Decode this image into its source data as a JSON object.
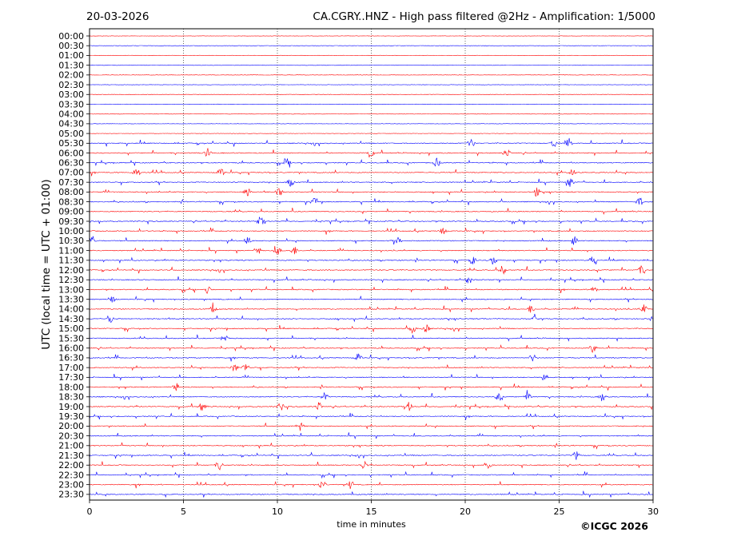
{
  "chart_data": {
    "type": "line",
    "date": "20-03-2026",
    "title": "CA.CGRY..HNZ - High pass filtered @2Hz - Amplification: 1/5000",
    "xlabel": "time in minutes",
    "ylabel": "UTC (local time = UTC + 01:00)",
    "copyright": "©ICGC 2026",
    "xlim": [
      0,
      30
    ],
    "x_ticks": [
      0,
      5,
      10,
      15,
      20,
      25,
      30
    ],
    "x_tick_labels": [
      "0",
      "5",
      "10",
      "15",
      "20",
      "25",
      "30"
    ],
    "vertical_gridlines_minutes": [
      5,
      10,
      15,
      20,
      25
    ],
    "grid_style": "dotted",
    "trace_colors": [
      "#ff0000",
      "#0000ff"
    ],
    "rows": [
      "00:00",
      "00:30",
      "01:00",
      "01:30",
      "02:00",
      "02:30",
      "03:00",
      "03:30",
      "04:00",
      "04:30",
      "05:00",
      "05:30",
      "06:00",
      "06:30",
      "07:00",
      "07:30",
      "08:00",
      "08:30",
      "09:00",
      "09:30",
      "10:00",
      "10:30",
      "11:00",
      "11:30",
      "12:00",
      "12:30",
      "13:00",
      "13:30",
      "14:00",
      "14:30",
      "15:00",
      "15:30",
      "16:00",
      "16:30",
      "17:00",
      "17:30",
      "18:00",
      "18:30",
      "19:00",
      "19:30",
      "20:00",
      "20:30",
      "21:00",
      "21:30",
      "22:00",
      "22:30",
      "23:00",
      "23:30"
    ],
    "events": [
      {
        "row": "05:30",
        "minutes": [
          20.3,
          24.7,
          25.5
        ]
      },
      {
        "row": "06:00",
        "minutes": [
          6.3,
          15.0,
          22.2
        ]
      },
      {
        "row": "06:30",
        "minutes": [
          10.5,
          18.5
        ]
      },
      {
        "row": "07:00",
        "minutes": [
          2.5,
          7.0,
          25.7
        ]
      },
      {
        "row": "07:30",
        "minutes": [
          10.7,
          25.6
        ]
      },
      {
        "row": "08:00",
        "minutes": [
          8.4,
          10.1,
          23.8
        ]
      },
      {
        "row": "08:30",
        "minutes": [
          12.0,
          29.3
        ]
      },
      {
        "row": "09:30",
        "minutes": [
          9.1
        ]
      },
      {
        "row": "10:00",
        "minutes": [
          18.8
        ]
      },
      {
        "row": "10:30",
        "minutes": [
          0.2,
          8.4,
          16.4,
          25.8
        ]
      },
      {
        "row": "11:00",
        "minutes": [
          9.0,
          10.0,
          10.9
        ]
      },
      {
        "row": "11:30",
        "minutes": [
          20.4,
          21.5,
          26.8
        ]
      },
      {
        "row": "12:00",
        "minutes": [
          22.0,
          29.4
        ]
      },
      {
        "row": "12:30",
        "minutes": [
          20.2
        ]
      },
      {
        "row": "13:00",
        "minutes": [
          6.3,
          26.9
        ]
      },
      {
        "row": "13:30",
        "minutes": [
          1.2
        ]
      },
      {
        "row": "14:00",
        "minutes": [
          6.6,
          23.5,
          29.5
        ]
      },
      {
        "row": "14:30",
        "minutes": [
          1.1,
          23.7
        ]
      },
      {
        "row": "15:00",
        "minutes": [
          17.2,
          17.9
        ]
      },
      {
        "row": "15:30",
        "minutes": [
          7.2
        ]
      },
      {
        "row": "16:00",
        "minutes": [
          26.8
        ]
      },
      {
        "row": "16:30",
        "minutes": [
          14.3,
          23.6
        ]
      },
      {
        "row": "17:00",
        "minutes": [
          7.7,
          8.3
        ]
      },
      {
        "row": "17:30",
        "minutes": [
          24.2
        ]
      },
      {
        "row": "18:00",
        "minutes": [
          4.6
        ]
      },
      {
        "row": "18:30",
        "minutes": [
          12.5,
          21.8,
          23.3,
          27.3
        ]
      },
      {
        "row": "19:00",
        "minutes": [
          6.0,
          10.2,
          12.2,
          17.0
        ]
      },
      {
        "row": "20:00",
        "minutes": [
          11.2
        ]
      },
      {
        "row": "21:30",
        "minutes": [
          25.9
        ]
      },
      {
        "row": "22:00",
        "minutes": [
          6.9,
          14.6,
          21.2
        ]
      },
      {
        "row": "23:00",
        "minutes": [
          12.4,
          13.9
        ]
      }
    ]
  }
}
